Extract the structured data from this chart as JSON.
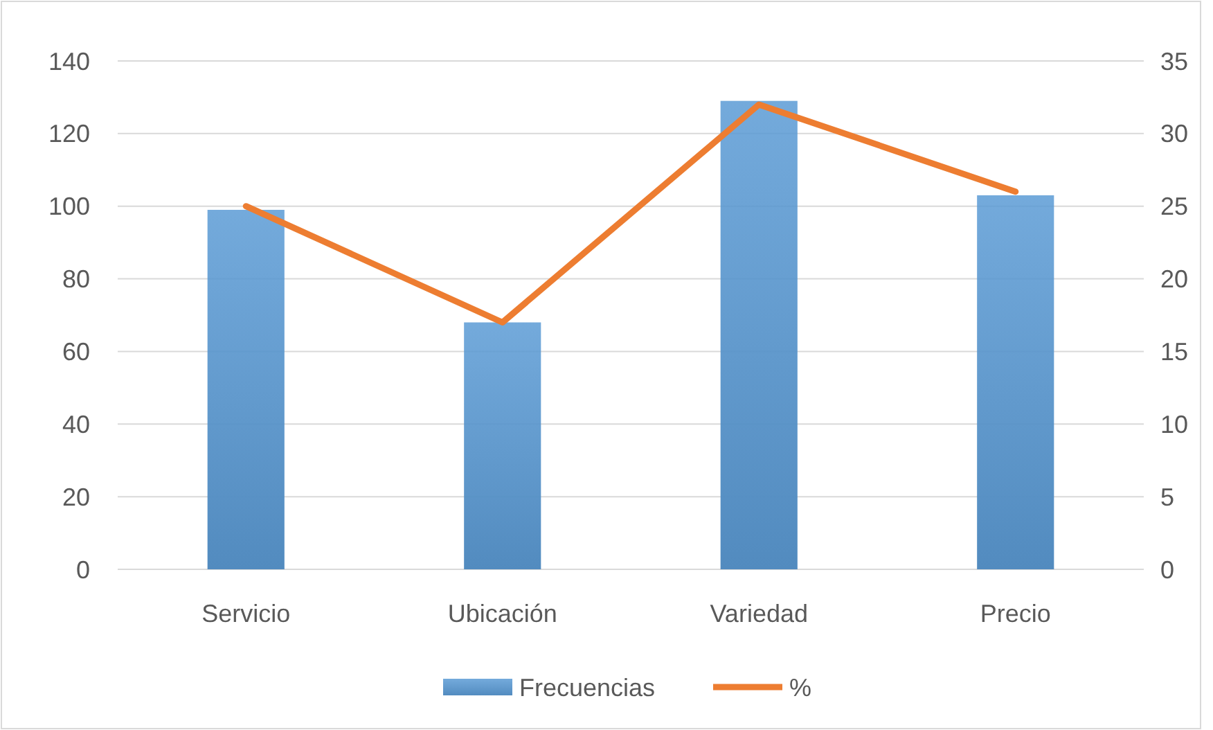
{
  "chart_data": {
    "type": "bar",
    "categories": [
      "Servicio",
      "Ubicación",
      "Variedad",
      "Precio"
    ],
    "series": [
      {
        "name": "Frecuencias",
        "color": "#5b9bd5",
        "values": [
          99,
          68,
          129,
          103
        ]
      },
      {
        "name": "%",
        "type": "line",
        "axis": "y2",
        "color": "#ed7d31",
        "values": [
          25,
          17,
          32,
          26
        ]
      }
    ],
    "ylim": [
      0,
      140
    ],
    "yticks": [
      0,
      20,
      40,
      60,
      80,
      100,
      120,
      140
    ],
    "y2lim": [
      0,
      35
    ],
    "y2ticks": [
      0,
      5,
      10,
      15,
      20,
      25,
      30,
      35
    ],
    "grid": "y",
    "legend": "bottom",
    "marker": "none",
    "line_style": "solid"
  }
}
